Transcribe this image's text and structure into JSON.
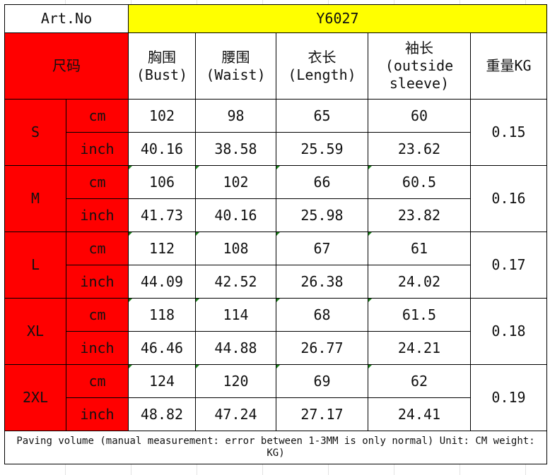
{
  "art_no_label": "Art.No",
  "art_no_value": "Y6027",
  "size_header": "尺码",
  "columns": [
    {
      "zh": "胸围",
      "en": "(Bust)"
    },
    {
      "zh": "腰围",
      "en": "(Waist)"
    },
    {
      "zh": "衣长",
      "en": "(Length)"
    },
    {
      "zh": "袖长",
      "en": "(outside sleeve)"
    }
  ],
  "weight_header": "重量KG",
  "units": {
    "cm": "cm",
    "inch": "inch"
  },
  "sizes": [
    {
      "size": "S",
      "cm": [
        "102",
        "98",
        "65",
        "60"
      ],
      "inch": [
        "40.16",
        "38.58",
        "25.59",
        "23.62"
      ],
      "weight": "0.15"
    },
    {
      "size": "M",
      "cm": [
        "106",
        "102",
        "66",
        "60.5"
      ],
      "inch": [
        "41.73",
        "40.16",
        "25.98",
        "23.82"
      ],
      "weight": "0.16"
    },
    {
      "size": "L",
      "cm": [
        "112",
        "108",
        "67",
        "61"
      ],
      "inch": [
        "44.09",
        "42.52",
        "26.38",
        "24.02"
      ],
      "weight": "0.17"
    },
    {
      "size": "XL",
      "cm": [
        "118",
        "114",
        "68",
        "61.5"
      ],
      "inch": [
        "46.46",
        "44.88",
        "26.77",
        "24.21"
      ],
      "weight": "0.18"
    },
    {
      "size": "2XL",
      "cm": [
        "124",
        "120",
        "69",
        "62"
      ],
      "inch": [
        "48.82",
        "47.24",
        "27.17",
        "24.41"
      ],
      "weight": "0.19"
    }
  ],
  "footer": "Paving volume (manual measurement: error between 1-3MM is only normal) Unit: CM weight: KG)",
  "colors": {
    "header_red": "#ff0000",
    "art_yellow": "#ffff00",
    "number_marker": "#1a7f1a"
  }
}
